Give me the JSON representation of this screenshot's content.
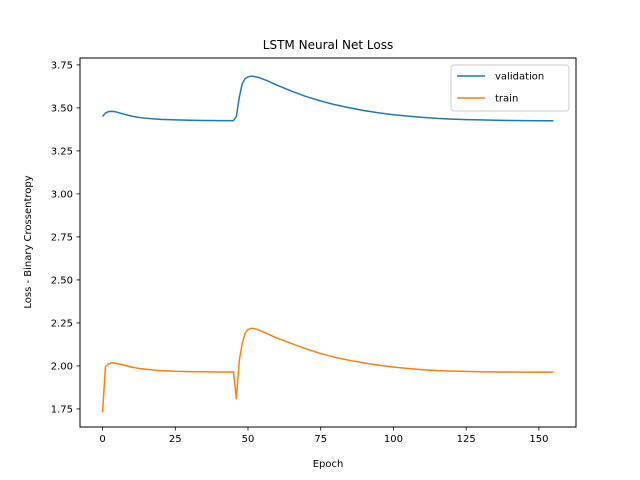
{
  "chart_data": {
    "type": "line",
    "title": "LSTM Neural Net Loss",
    "xlabel": "Epoch",
    "ylabel": "Loss - Binary Crossentropy",
    "xlim": [
      -7.75,
      162.75
    ],
    "ylim": [
      1.645,
      3.79
    ],
    "xticks": [
      0,
      25,
      50,
      75,
      100,
      125,
      150
    ],
    "yticks": [
      1.75,
      2.0,
      2.25,
      2.5,
      2.75,
      3.0,
      3.25,
      3.5,
      3.75
    ],
    "grid": false,
    "legend": "top-right",
    "series": [
      {
        "name": "validation",
        "color": "#1f77b4",
        "points": [
          [
            0,
            3.45
          ],
          [
            1,
            3.47
          ],
          [
            2,
            3.478
          ],
          [
            3,
            3.48
          ],
          [
            4,
            3.479
          ],
          [
            5,
            3.475
          ],
          [
            7,
            3.465
          ],
          [
            10,
            3.452
          ],
          [
            13,
            3.443
          ],
          [
            17,
            3.437
          ],
          [
            20,
            3.433
          ],
          [
            25,
            3.43
          ],
          [
            30,
            3.428
          ],
          [
            35,
            3.427
          ],
          [
            40,
            3.426
          ],
          [
            45,
            3.426
          ],
          [
            46,
            3.45
          ],
          [
            47,
            3.56
          ],
          [
            48,
            3.64
          ],
          [
            49,
            3.67
          ],
          [
            50,
            3.68
          ],
          [
            51,
            3.685
          ],
          [
            52,
            3.683
          ],
          [
            54,
            3.675
          ],
          [
            57,
            3.655
          ],
          [
            60,
            3.632
          ],
          [
            65,
            3.597
          ],
          [
            70,
            3.566
          ],
          [
            75,
            3.54
          ],
          [
            80,
            3.518
          ],
          [
            85,
            3.5
          ],
          [
            90,
            3.484
          ],
          [
            95,
            3.471
          ],
          [
            100,
            3.46
          ],
          [
            105,
            3.452
          ],
          [
            110,
            3.445
          ],
          [
            115,
            3.439
          ],
          [
            120,
            3.435
          ],
          [
            125,
            3.432
          ],
          [
            130,
            3.43
          ],
          [
            135,
            3.428
          ],
          [
            140,
            3.427
          ],
          [
            145,
            3.426
          ],
          [
            150,
            3.425
          ],
          [
            155,
            3.425
          ]
        ]
      },
      {
        "name": "train",
        "color": "#ff7f0e",
        "points": [
          [
            0,
            1.73
          ],
          [
            1,
            1.995
          ],
          [
            2,
            2.012
          ],
          [
            3,
            2.018
          ],
          [
            4,
            2.017
          ],
          [
            5,
            2.014
          ],
          [
            7,
            2.006
          ],
          [
            10,
            1.993
          ],
          [
            13,
            1.984
          ],
          [
            17,
            1.977
          ],
          [
            20,
            1.973
          ],
          [
            25,
            1.969
          ],
          [
            30,
            1.967
          ],
          [
            35,
            1.966
          ],
          [
            40,
            1.965
          ],
          [
            45,
            1.965
          ],
          [
            46,
            1.81
          ],
          [
            47,
            2.03
          ],
          [
            48,
            2.13
          ],
          [
            49,
            2.19
          ],
          [
            50,
            2.212
          ],
          [
            51,
            2.218
          ],
          [
            52,
            2.218
          ],
          [
            54,
            2.207
          ],
          [
            57,
            2.184
          ],
          [
            60,
            2.162
          ],
          [
            65,
            2.13
          ],
          [
            70,
            2.099
          ],
          [
            75,
            2.072
          ],
          [
            80,
            2.05
          ],
          [
            85,
            2.032
          ],
          [
            90,
            2.017
          ],
          [
            95,
            2.004
          ],
          [
            100,
            1.993
          ],
          [
            105,
            1.985
          ],
          [
            110,
            1.978
          ],
          [
            115,
            1.973
          ],
          [
            120,
            1.97
          ],
          [
            125,
            1.968
          ],
          [
            130,
            1.966
          ],
          [
            135,
            1.965
          ],
          [
            140,
            1.965
          ],
          [
            145,
            1.964
          ],
          [
            150,
            1.964
          ],
          [
            155,
            1.964
          ]
        ]
      }
    ]
  }
}
